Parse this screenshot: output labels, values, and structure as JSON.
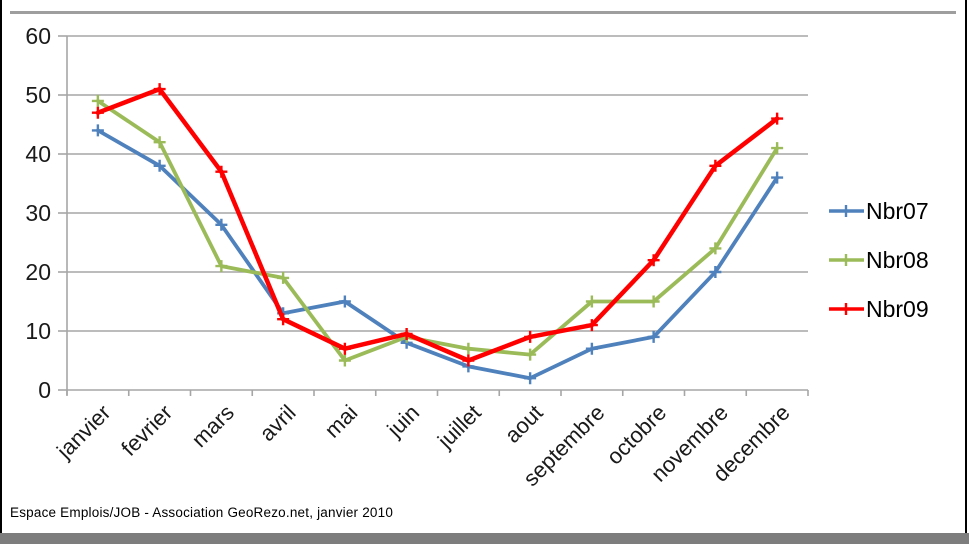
{
  "window": {
    "caption": "Espace Emplois/JOB - Association GeoRezo.net, janvier 2010"
  },
  "colors": {
    "gridline": "#a6a6a6",
    "axis": "#a6a6a6",
    "tick_label": "#1a1a1a",
    "series_blue": "#4F81BD",
    "series_green": "#9BBB59",
    "series_red": "#FF0000",
    "bottom_bar": "#7d7d7d",
    "frame_border": "#000000"
  },
  "chart_data": {
    "type": "line",
    "title": "",
    "xlabel": "",
    "ylabel": "",
    "categories": [
      "janvier",
      "fevrier",
      "mars",
      "avril",
      "mai",
      "juin",
      "juillet",
      "aout",
      "septembre",
      "octobre",
      "novembre",
      "decembre"
    ],
    "series": [
      {
        "name": "Nbr07",
        "color": "#4F81BD",
        "values": [
          44,
          38,
          28,
          13,
          15,
          8,
          4,
          2,
          7,
          9,
          20,
          36
        ]
      },
      {
        "name": "Nbr08",
        "color": "#9BBB59",
        "values": [
          49,
          42,
          21,
          19,
          5,
          9,
          7,
          6,
          15,
          15,
          24,
          41
        ]
      },
      {
        "name": "Nbr09",
        "color": "#FF0000",
        "values": [
          47,
          51,
          37,
          12,
          7,
          9.5,
          5,
          9,
          11,
          22,
          38,
          46
        ]
      }
    ],
    "ylim": [
      0,
      60
    ],
    "ytick_step": 10,
    "grid": true,
    "marker": "plus",
    "legend_position": "right",
    "x_label_rotation_deg": -45
  }
}
